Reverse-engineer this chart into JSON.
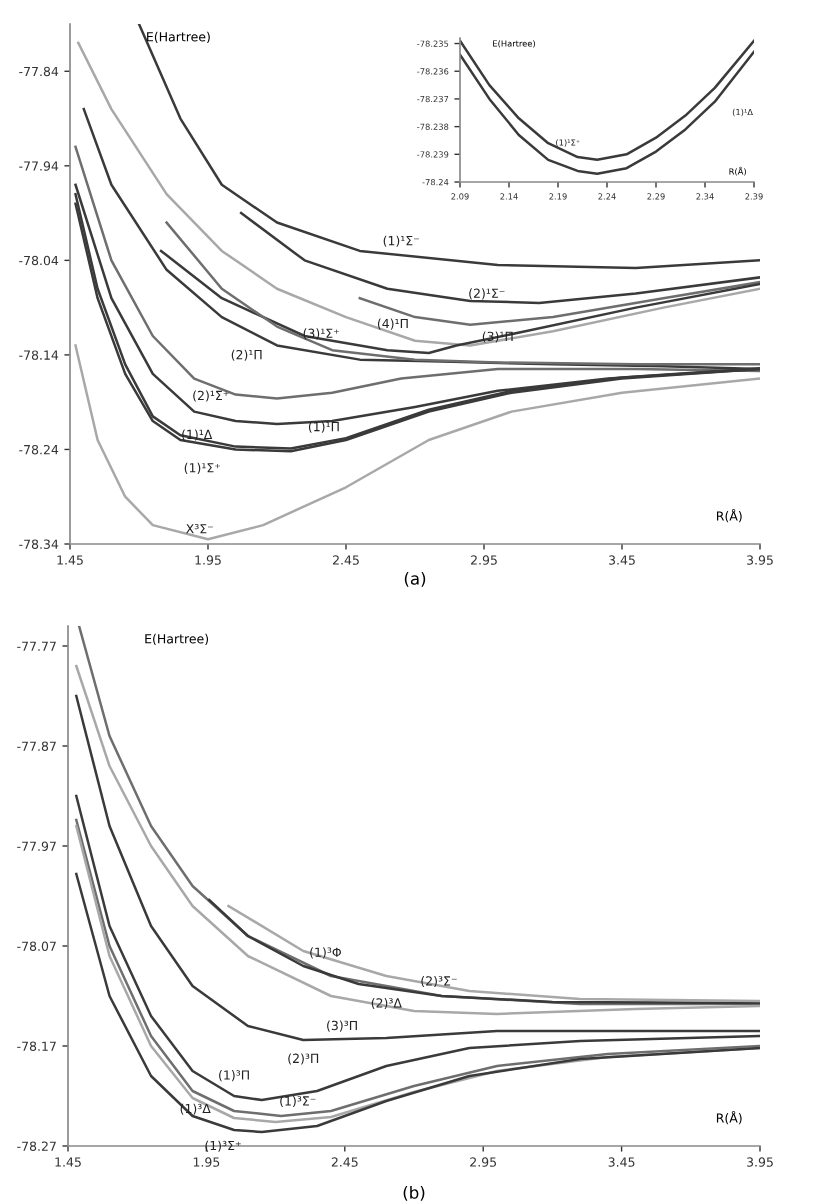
{
  "chart_data": [
    {
      "type": "line",
      "xlabel": "R(Å)",
      "ylabel": "E(Hartree)",
      "xlim": [
        1.45,
        3.95
      ],
      "ylim": [
        -78.34,
        -77.79
      ],
      "xticks": [
        1.45,
        1.95,
        2.45,
        2.95,
        3.45,
        3.95
      ],
      "yticks": [
        -78.34,
        -78.24,
        -78.14,
        -78.04,
        -77.94,
        -77.84
      ],
      "grid": false,
      "legend": false,
      "series": [
        {
          "color": "#3a3a3a",
          "x": [
            1.7,
            1.85,
            2.0,
            2.2,
            2.5,
            3.0,
            3.5,
            3.95
          ],
          "values": [
            -77.79,
            -77.89,
            -77.96,
            -78.0,
            -78.03,
            -78.045,
            -78.048,
            -78.04
          ]
        },
        {
          "color": "#3a3a3a",
          "x": [
            2.07,
            2.3,
            2.6,
            2.9,
            3.15,
            3.5,
            3.95
          ],
          "values": [
            -77.99,
            -78.04,
            -78.07,
            -78.083,
            -78.085,
            -78.075,
            -78.058
          ]
        },
        {
          "color": "#a8a8a8",
          "x": [
            1.48,
            1.6,
            1.8,
            2.0,
            2.2,
            2.45,
            2.7,
            2.9,
            3.2,
            3.6,
            3.95
          ],
          "values": [
            -77.81,
            -77.88,
            -77.97,
            -78.03,
            -78.07,
            -78.1,
            -78.125,
            -78.13,
            -78.115,
            -78.09,
            -78.07
          ]
        },
        {
          "color": "#6e6e6e",
          "x": [
            2.5,
            2.7,
            2.9,
            3.2,
            3.6,
            3.95
          ],
          "values": [
            -78.08,
            -78.1,
            -78.108,
            -78.1,
            -78.08,
            -78.063
          ]
        },
        {
          "color": "#3a3a3a",
          "x": [
            1.78,
            2.0,
            2.3,
            2.6,
            2.75,
            2.85,
            3.1,
            3.5,
            3.95
          ],
          "values": [
            -78.03,
            -78.08,
            -78.12,
            -78.135,
            -78.138,
            -78.13,
            -78.115,
            -78.09,
            -78.065
          ]
        },
        {
          "color": "#3a3a3a",
          "x": [
            1.5,
            1.6,
            1.8,
            2.0,
            2.2,
            2.5,
            2.8,
            3.2,
            3.6,
            3.95
          ],
          "values": [
            -77.88,
            -77.96,
            -78.05,
            -78.1,
            -78.13,
            -78.145,
            -78.147,
            -78.15,
            -78.152,
            -78.155
          ]
        },
        {
          "color": "#6e6e6e",
          "x": [
            1.8,
            2.0,
            2.2,
            2.4,
            2.7,
            3.0,
            3.5,
            3.95
          ],
          "values": [
            -78.0,
            -78.07,
            -78.11,
            -78.135,
            -78.145,
            -78.148,
            -78.15,
            -78.15
          ]
        },
        {
          "color": "#6e6e6e",
          "x": [
            1.47,
            1.6,
            1.75,
            1.9,
            2.05,
            2.2,
            2.4,
            2.65,
            3.0,
            3.5,
            3.95
          ],
          "values": [
            -77.92,
            -78.04,
            -78.12,
            -78.165,
            -78.182,
            -78.186,
            -78.18,
            -78.165,
            -78.155,
            -78.155,
            -78.157
          ]
        },
        {
          "color": "#3a3a3a",
          "x": [
            1.47,
            1.6,
            1.75,
            1.9,
            2.05,
            2.2,
            2.4,
            2.7,
            3.0,
            3.4,
            3.95
          ],
          "values": [
            -77.96,
            -78.08,
            -78.16,
            -78.2,
            -78.21,
            -78.213,
            -78.21,
            -78.195,
            -78.178,
            -78.165,
            -78.155
          ]
        },
        {
          "color": "#3a3a3a",
          "x": [
            1.47,
            1.55,
            1.65,
            1.75,
            1.85,
            2.05,
            2.25,
            2.45,
            2.75,
            3.05,
            3.45,
            3.95
          ],
          "values": [
            -77.97,
            -78.07,
            -78.15,
            -78.205,
            -78.225,
            -78.237,
            -78.239,
            -78.228,
            -78.198,
            -78.178,
            -78.164,
            -78.154
          ]
        },
        {
          "color": "#3a3a3a",
          "x": [
            1.47,
            1.55,
            1.65,
            1.75,
            1.85,
            2.05,
            2.25,
            2.45,
            2.75,
            3.05,
            3.45,
            3.95
          ],
          "values": [
            -77.98,
            -78.08,
            -78.16,
            -78.21,
            -78.23,
            -78.24,
            -78.242,
            -78.23,
            -78.2,
            -78.18,
            -78.165,
            -78.155
          ]
        },
        {
          "color": "#a8a8a8",
          "x": [
            1.47,
            1.55,
            1.65,
            1.75,
            1.95,
            2.15,
            2.45,
            2.75,
            3.05,
            3.45,
            3.95
          ],
          "values": [
            -78.13,
            -78.23,
            -78.29,
            -78.32,
            -78.335,
            -78.32,
            -78.28,
            -78.23,
            -78.2,
            -78.18,
            -78.165
          ]
        }
      ],
      "annotations": [
        {
          "text": "(1)¹Σ⁻",
          "x": 2.65,
          "y": -78.035
        },
        {
          "text": "(2)¹Σ⁻",
          "x": 2.96,
          "y": -78.076
        },
        {
          "text": "(4)¹Π",
          "x": 2.62,
          "y": -78.108
        },
        {
          "text": "(3)¹Σ⁺",
          "x": 2.36,
          "y": -78.133
        },
        {
          "text": "(3)¹Π",
          "x": 3.0,
          "y": -78.148
        },
        {
          "text": "(2)¹Π",
          "x": 2.05,
          "y": -78.182
        },
        {
          "text": "(2)¹Σ⁺",
          "x": 1.96,
          "y": -78.184
        },
        {
          "text": "(1)¹Π",
          "x": 2.37,
          "y": -78.217
        },
        {
          "text": "(1)¹Δ",
          "x": 2.05,
          "y": -78.237
        },
        {
          "text": "(1)¹Σ⁺",
          "x": 2.05,
          "y": -78.24
        },
        {
          "text": "X³Σ⁻",
          "x": 1.92,
          "y": -78.325
        },
        "(a)"
      ]
    },
    {
      "type": "line",
      "xlabel": "R(Å)",
      "ylabel": "E(Hartree)",
      "xlim": [
        2.09,
        2.39
      ],
      "ylim": [
        -78.24,
        -78.2348
      ],
      "xticks": [
        2.09,
        2.14,
        2.19,
        2.24,
        2.29,
        2.34,
        2.39
      ],
      "yticks": [
        {
          "value": -78.235,
          "label": "-78.235"
        },
        {
          "value": -78.236,
          "label": "-78.236"
        },
        {
          "value": -78.237,
          "label": "-78.237"
        },
        {
          "value": -78.238,
          "label": "-78.238"
        },
        {
          "value": -78.239,
          "label": "-78.239"
        },
        -78.24
      ],
      "grid": false,
      "legend": false,
      "series": [
        {
          "color": "#3a3a3a",
          "x": [
            2.09,
            2.12,
            2.15,
            2.18,
            2.21,
            2.23,
            2.26,
            2.29,
            2.32,
            2.35,
            2.39
          ],
          "values": [
            -78.2349,
            -78.2365,
            -78.2377,
            -78.2386,
            -78.2391,
            -78.2392,
            -78.239,
            -78.2384,
            -78.2376,
            -78.2366,
            -78.2349
          ]
        },
        {
          "color": "#3a3a3a",
          "x": [
            2.09,
            2.12,
            2.15,
            2.18,
            2.21,
            2.23,
            2.26,
            2.29,
            2.32,
            2.35,
            2.39
          ],
          "values": [
            -78.2354,
            -78.237,
            -78.2383,
            -78.2392,
            -78.2396,
            -78.2397,
            -78.2395,
            -78.2389,
            -78.2381,
            -78.2371,
            -78.2353
          ]
        }
      ],
      "annotations": [
        {
          "text": "(1)¹Σ⁺",
          "x": 2.2,
          "y": -78.2386
        },
        {
          "text": "(1)¹Δ",
          "x": 2.35,
          "y": -78.2371
        }
      ]
    },
    {
      "type": "line",
      "xlabel": "R(Å)",
      "ylabel": "E(Hartree)",
      "xlim": [
        1.45,
        3.95
      ],
      "ylim": [
        -78.27,
        -77.75
      ],
      "xticks": [
        1.45,
        1.95,
        2.45,
        2.95,
        3.45,
        3.95
      ],
      "yticks": [
        -78.27,
        -78.17,
        -78.07,
        -77.97,
        -77.87,
        -77.77
      ],
      "grid": false,
      "legend": false,
      "series": [
        {
          "color": "#6e6e6e",
          "x": [
            1.49,
            1.6,
            1.75,
            1.9,
            2.1,
            2.4,
            2.8,
            3.3,
            3.95
          ],
          "values": [
            -77.75,
            -77.86,
            -77.95,
            -78.01,
            -78.06,
            -78.1,
            -78.12,
            -78.128,
            -78.128
          ]
        },
        {
          "color": "#a8a8a8",
          "x": [
            1.48,
            1.6,
            1.75,
            1.9,
            2.1,
            2.4,
            2.7,
            3.0,
            3.5,
            3.95
          ],
          "values": [
            -77.79,
            -77.89,
            -77.97,
            -78.03,
            -78.08,
            -78.12,
            -78.135,
            -78.138,
            -78.133,
            -78.13
          ]
        },
        {
          "color": "#3a3a3a",
          "x": [
            1.48,
            1.6,
            1.75,
            1.9,
            2.1,
            2.3,
            2.6,
            3.0,
            3.5,
            3.95
          ],
          "values": [
            -77.82,
            -77.95,
            -78.05,
            -78.11,
            -78.15,
            -78.164,
            -78.162,
            -78.155,
            -78.155,
            -78.155
          ]
        },
        {
          "color": "#3a3a3a",
          "x": [
            1.96,
            2.1,
            2.3,
            2.5,
            2.8,
            3.2,
            3.95
          ],
          "values": [
            -78.024,
            -78.06,
            -78.09,
            -78.108,
            -78.12,
            -78.126,
            -78.127
          ]
        },
        {
          "color": "#a8a8a8",
          "x": [
            2.03,
            2.3,
            2.6,
            2.9,
            3.3,
            3.95
          ],
          "values": [
            -78.03,
            -78.075,
            -78.1,
            -78.115,
            -78.123,
            -78.125
          ]
        },
        {
          "color": "#3a3a3a",
          "x": [
            1.48,
            1.6,
            1.75,
            1.9,
            2.05,
            2.15,
            2.35,
            2.6,
            2.9,
            3.3,
            3.95
          ],
          "values": [
            -77.92,
            -78.05,
            -78.14,
            -78.195,
            -78.22,
            -78.224,
            -78.215,
            -78.19,
            -78.172,
            -78.165,
            -78.16
          ]
        },
        {
          "color": "#6e6e6e",
          "x": [
            1.48,
            1.6,
            1.75,
            1.9,
            2.05,
            2.22,
            2.4,
            2.7,
            3.0,
            3.4,
            3.95
          ],
          "values": [
            -77.944,
            -78.07,
            -78.16,
            -78.215,
            -78.235,
            -78.24,
            -78.235,
            -78.21,
            -78.19,
            -78.178,
            -78.17
          ]
        },
        {
          "color": "#a8a8a8",
          "x": [
            1.48,
            1.6,
            1.75,
            1.9,
            2.05,
            2.2,
            2.4,
            2.7,
            3.0,
            3.4,
            3.95
          ],
          "values": [
            -77.95,
            -78.08,
            -78.17,
            -78.222,
            -78.242,
            -78.246,
            -78.241,
            -78.216,
            -78.195,
            -78.181,
            -78.172
          ]
        },
        {
          "color": "#3a3a3a",
          "x": [
            1.48,
            1.6,
            1.75,
            1.9,
            2.05,
            2.15,
            2.35,
            2.6,
            2.9,
            3.3,
            3.95
          ],
          "values": [
            -77.998,
            -78.12,
            -78.2,
            -78.24,
            -78.254,
            -78.256,
            -78.25,
            -78.225,
            -78.2,
            -78.183,
            -78.172
          ]
        }
      ],
      "annotations": [
        {
          "text": "(1)³Φ",
          "x": 2.38,
          "y": -78.094
        },
        {
          "text": "(2)³Σ⁻",
          "x": 2.79,
          "y": -78.106
        },
        {
          "text": "(2)³Δ",
          "x": 2.6,
          "y": -78.128
        },
        {
          "text": "(3)³Π",
          "x": 2.4,
          "y": -78.12
        },
        {
          "text": "(2)³Π",
          "x": 2.3,
          "y": -78.164
        },
        {
          "text": "(1)³Π",
          "x": 2.05,
          "y": -78.214
        },
        {
          "text": "(1)³Σ⁻",
          "x": 2.28,
          "y": -78.226
        },
        {
          "text": "(1)³Δ",
          "x": 2.05,
          "y": -78.242
        },
        {
          "text": "(1)³Σ⁺",
          "x": 2.05,
          "y": -78.254
        },
        "(b)"
      ]
    }
  ]
}
